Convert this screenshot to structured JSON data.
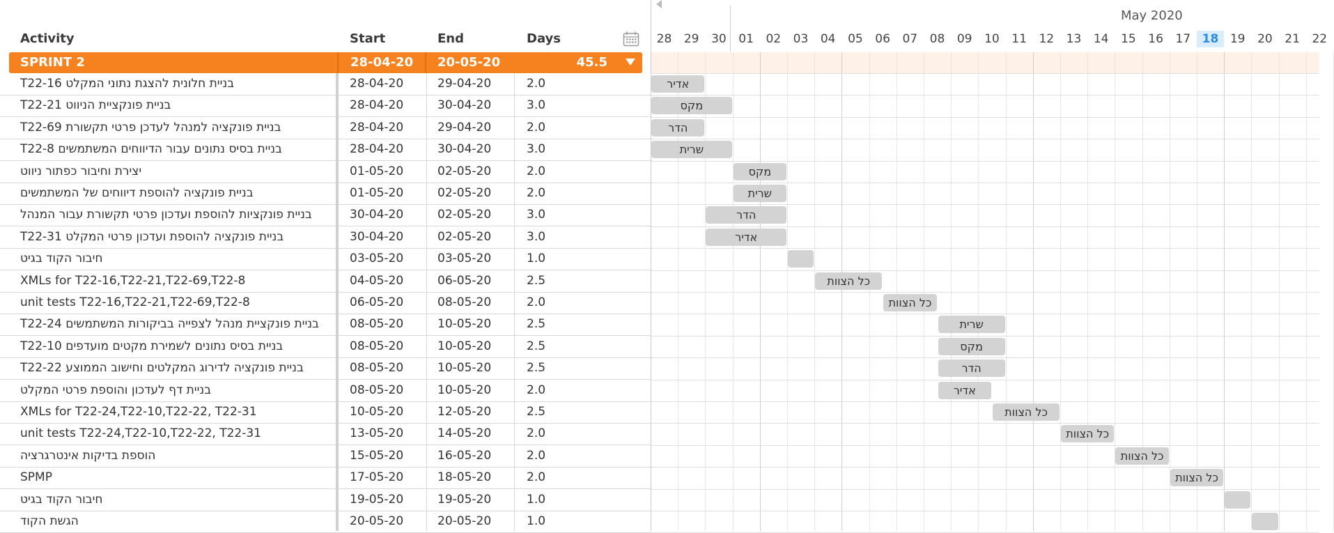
{
  "headers": {
    "activity": "Activity",
    "start": "Start",
    "end": "End",
    "days": "Days"
  },
  "sprint": {
    "name": "SPRINT 2",
    "start": "28-04-20",
    "end": "20-05-20",
    "days": "45.5"
  },
  "month_label": "May 2020",
  "days": [
    "28",
    "29",
    "30",
    "01",
    "02",
    "03",
    "04",
    "05",
    "06",
    "07",
    "08",
    "09",
    "10",
    "11",
    "12",
    "13",
    "14",
    "15",
    "16",
    "17",
    "18",
    "19",
    "20",
    "21",
    "22"
  ],
  "today": "18",
  "colors": {
    "sprint": "#f5821f",
    "bar": "#d3d3d3",
    "today": "#2a8be0"
  },
  "tasks": [
    {
      "activity": "T22-16 בניית חלונית להצגת נתוני המקלט",
      "start": "28-04-20",
      "end": "29-04-20",
      "days": "2.0",
      "bar": "אדיר",
      "s": 0,
      "d": 2
    },
    {
      "activity": "T22-21 בניית פונקציית הניווט",
      "start": "28-04-20",
      "end": "30-04-20",
      "days": "3.0",
      "bar": "מקס",
      "s": 0,
      "d": 3
    },
    {
      "activity": " T22-69 בניית פונקציה למנהל לעדכן פרטי תקשורת",
      "start": "28-04-20",
      "end": "29-04-20",
      "days": "2.0",
      "bar": "הדר",
      "s": 0,
      "d": 2
    },
    {
      "activity": "T22-8 בניית בסיס נתונים עבור הדיווחים המשתמשים",
      "start": "28-04-20",
      "end": "30-04-20",
      "days": "3.0",
      "bar": "שרית",
      "s": 0,
      "d": 3
    },
    {
      "activity": "יצירת וחיבור כפתור ניווט",
      "start": "01-05-20",
      "end": "02-05-20",
      "days": "2.0",
      "bar": "מקס",
      "s": 3,
      "d": 2
    },
    {
      "activity": "בניית פונקציה להוספת דיווחים של המשתמשים",
      "start": "01-05-20",
      "end": "02-05-20",
      "days": "2.0",
      "bar": "שרית",
      "s": 3,
      "d": 2
    },
    {
      "activity": "בניית פונקציות להוספת ועדכון פרטי תקשורת עבור המנהל",
      "start": "30-04-20",
      "end": "02-05-20",
      "days": "3.0",
      "bar": "הדר",
      "s": 2,
      "d": 3
    },
    {
      "activity": "T22-31 בניית פונקציה להוספת ועדכון פרטי המקלט",
      "start": "30-04-20",
      "end": "02-05-20",
      "days": "3.0",
      "bar": "אדיר",
      "s": 2,
      "d": 3
    },
    {
      "activity": "חיבור הקוד בגיט",
      "start": "03-05-20",
      "end": "03-05-20",
      "days": "1.0",
      "bar": "",
      "s": 5,
      "d": 1
    },
    {
      "activity": "XMLs for T22-16,T22-21,T22-69,T22-8",
      "start": "04-05-20",
      "end": "06-05-20",
      "days": "2.5",
      "bar": "כל הצוות",
      "s": 6,
      "d": 2.5
    },
    {
      "activity": "unit tests T22-16,T22-21,T22-69,T22-8",
      "start": "06-05-20",
      "end": "08-05-20",
      "days": "2.0",
      "bar": "כל הצוות",
      "s": 8.5,
      "d": 2
    },
    {
      "activity": "T22-24 בניית פונקציית מנהל לצפייה בביקורות המשתמשים",
      "start": "08-05-20",
      "end": "10-05-20",
      "days": "2.5",
      "bar": "שרית",
      "s": 10.5,
      "d": 2.5
    },
    {
      "activity": "T22-10 בניית בסיס נתונים לשמירת מקטים מועדפים",
      "start": "08-05-20",
      "end": "10-05-20",
      "days": "2.5",
      "bar": "מקס",
      "s": 10.5,
      "d": 2.5
    },
    {
      "activity": "T22-22 בניית פונקציה לדירוג המקלטים וחישוב הממוצע",
      "start": "08-05-20",
      "end": "10-05-20",
      "days": "2.5",
      "bar": "הדר",
      "s": 10.5,
      "d": 2.5
    },
    {
      "activity": "בניית דף לעדכון והוספת פרטי המקלט",
      "start": "08-05-20",
      "end": "10-05-20",
      "days": "2.0",
      "bar": "אדיר",
      "s": 10.5,
      "d": 2
    },
    {
      "activity": "XMLs for T22-24,T22-10,T22-22, T22-31",
      "start": "10-05-20",
      "end": "12-05-20",
      "days": "2.5",
      "bar": "כל הצוות",
      "s": 12.5,
      "d": 2.5
    },
    {
      "activity": "unit tests T22-24,T22-10,T22-22, T22-31",
      "start": "13-05-20",
      "end": "14-05-20",
      "days": "2.0",
      "bar": "כל הצוות",
      "s": 15,
      "d": 2
    },
    {
      "activity": "הוספת בדיקות אינטרגרציה",
      "start": "15-05-20",
      "end": "16-05-20",
      "days": "2.0",
      "bar": "כל הצוות",
      "s": 17,
      "d": 2
    },
    {
      "activity": "SPMP",
      "start": "17-05-20",
      "end": "18-05-20",
      "days": "2.0",
      "bar": "כל הצוות",
      "s": 19,
      "d": 2
    },
    {
      "activity": "חיבור הקוד בגיט",
      "start": "19-05-20",
      "end": "19-05-20",
      "days": "1.0",
      "bar": "",
      "s": 21,
      "d": 1
    },
    {
      "activity": "הגשת הקוד",
      "start": "20-05-20",
      "end": "20-05-20",
      "days": "1.0",
      "bar": "",
      "s": 22,
      "d": 1
    }
  ]
}
